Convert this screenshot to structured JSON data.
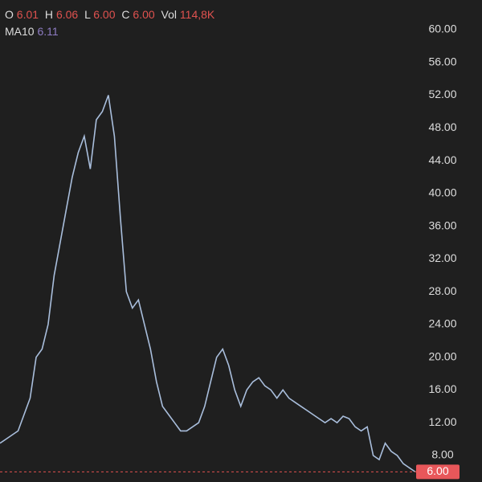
{
  "chart_data": {
    "type": "line",
    "ohlc": [
      {
        "name": "O",
        "value": 6.01
      },
      {
        "name": "H",
        "value": 6.06
      },
      {
        "name": "L",
        "value": 6.0,
        "value_label": "6.00"
      },
      {
        "name": "C",
        "value": 6.0,
        "value_label": "6.00"
      }
    ],
    "volume": {
      "name": "Vol",
      "value": 114800,
      "value_label": "114,8K"
    },
    "ma": {
      "name": "MA10",
      "value": 6.11
    },
    "last_price": {
      "value": 6.0,
      "value_label": "6.00"
    },
    "color": "#a9bedc",
    "values": [
      9.5,
      10,
      10.5,
      11,
      13,
      15,
      20,
      21,
      24,
      30,
      34,
      38,
      42,
      45,
      47,
      43,
      49,
      50,
      52,
      47,
      37,
      28,
      26,
      27,
      24,
      21,
      17,
      14,
      13,
      12,
      11,
      11,
      11.5,
      12,
      14,
      17,
      20,
      21,
      19,
      16,
      14,
      16,
      17,
      17.5,
      16.5,
      16,
      15,
      16,
      15,
      14.5,
      14,
      13.5,
      13,
      12.5,
      12,
      12.5,
      12,
      12.8,
      12.5,
      11.5,
      11,
      11.5,
      8,
      7.5,
      9.5,
      8.5,
      8,
      7,
      6.5,
      6
    ],
    "ylim": [
      4.76,
      63.63
    ],
    "yticks": [
      {
        "value": 8,
        "label": "8.00"
      },
      {
        "value": 12,
        "label": "12.00"
      },
      {
        "value": 16,
        "label": "16.00"
      },
      {
        "value": 20,
        "label": "20.00"
      },
      {
        "value": 24,
        "label": "24.00"
      },
      {
        "value": 28,
        "label": "28.00"
      },
      {
        "value": 32,
        "label": "32.00"
      },
      {
        "value": 36,
        "label": "36.00"
      },
      {
        "value": 40,
        "label": "40.00"
      },
      {
        "value": 44,
        "label": "44.00"
      },
      {
        "value": 48,
        "label": "48.00"
      },
      {
        "value": 52,
        "label": "52.00"
      },
      {
        "value": 56,
        "label": "56.00"
      },
      {
        "value": 60,
        "label": "60.00"
      }
    ]
  }
}
